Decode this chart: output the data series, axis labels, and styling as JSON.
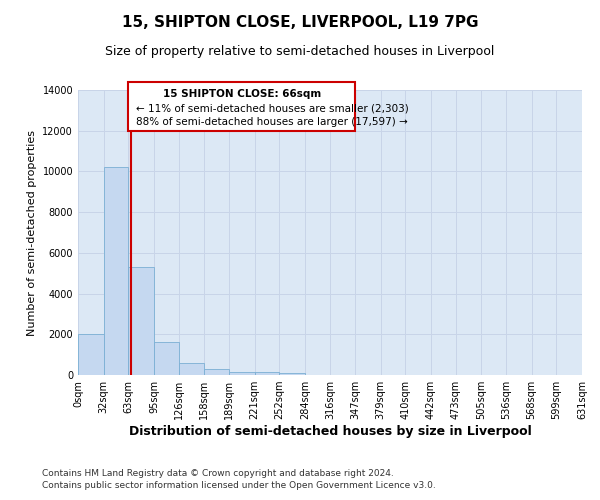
{
  "title": "15, SHIPTON CLOSE, LIVERPOOL, L19 7PG",
  "subtitle": "Size of property relative to semi-detached houses in Liverpool",
  "xlabel": "Distribution of semi-detached houses by size in Liverpool",
  "ylabel": "Number of semi-detached properties",
  "footer_line1": "Contains HM Land Registry data © Crown copyright and database right 2024.",
  "footer_line2": "Contains public sector information licensed under the Open Government Licence v3.0.",
  "annotation_line1": "15 SHIPTON CLOSE: 66sqm",
  "annotation_line2": "← 11% of semi-detached houses are smaller (2,303)",
  "annotation_line3": "88% of semi-detached houses are larger (17,597) →",
  "bin_edges": [
    0,
    32,
    63,
    95,
    126,
    158,
    189,
    221,
    252,
    284,
    316,
    347,
    379,
    410,
    442,
    473,
    505,
    536,
    568,
    599,
    631
  ],
  "bin_labels": [
    "0sqm",
    "32sqm",
    "63sqm",
    "95sqm",
    "126sqm",
    "158sqm",
    "189sqm",
    "221sqm",
    "252sqm",
    "284sqm",
    "316sqm",
    "347sqm",
    "379sqm",
    "410sqm",
    "442sqm",
    "473sqm",
    "505sqm",
    "536sqm",
    "568sqm",
    "599sqm",
    "631sqm"
  ],
  "counts": [
    2000,
    10200,
    5300,
    1600,
    600,
    280,
    170,
    130,
    100,
    0,
    0,
    0,
    0,
    0,
    0,
    0,
    0,
    0,
    0,
    0
  ],
  "bar_color": "#c5d8f0",
  "bar_edgecolor": "#7aafd4",
  "vline_color": "#cc0000",
  "vline_x": 66,
  "ylim": [
    0,
    14000
  ],
  "yticks": [
    0,
    2000,
    4000,
    6000,
    8000,
    10000,
    12000,
    14000
  ],
  "grid_color": "#c8d4e8",
  "bg_color": "#dce8f5",
  "annotation_box_edgecolor": "#cc0000",
  "title_fontsize": 11,
  "subtitle_fontsize": 9,
  "xlabel_fontsize": 9,
  "ylabel_fontsize": 8,
  "tick_fontsize": 7,
  "annotation_fontsize": 7.5,
  "footer_fontsize": 6.5
}
